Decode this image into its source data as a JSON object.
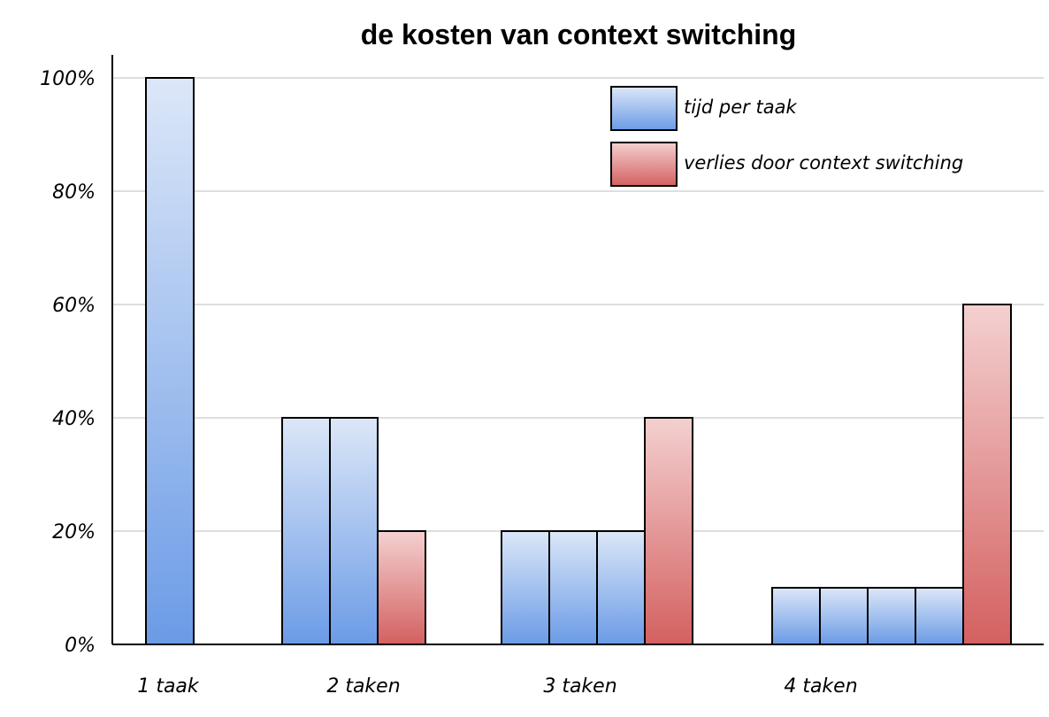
{
  "chart_data": {
    "type": "bar",
    "title": "de kosten van context switching",
    "xlabel": "",
    "ylabel": "",
    "ylim": [
      0,
      100
    ],
    "yticks": [
      "0%",
      "20%",
      "40%",
      "60%",
      "80%",
      "100%"
    ],
    "ytick_values": [
      0,
      20,
      40,
      60,
      80,
      100
    ],
    "grid": true,
    "legend_position": "top-right",
    "series": [
      {
        "name": "tijd per taak",
        "color_top": "#dce7f8",
        "color_bottom": "#6b9be6"
      },
      {
        "name": "verlies door context switching",
        "color_top": "#f4d0d0",
        "color_bottom": "#d46060"
      }
    ],
    "groups": [
      {
        "label": "1 taak",
        "bars": [
          {
            "series": 0,
            "value": 100
          }
        ]
      },
      {
        "label": "2 taken",
        "bars": [
          {
            "series": 0,
            "value": 40
          },
          {
            "series": 0,
            "value": 40
          },
          {
            "series": 1,
            "value": 20
          }
        ]
      },
      {
        "label": "3 taken",
        "bars": [
          {
            "series": 0,
            "value": 20
          },
          {
            "series": 0,
            "value": 20
          },
          {
            "series": 0,
            "value": 20
          },
          {
            "series": 1,
            "value": 40
          }
        ]
      },
      {
        "label": "4 taken",
        "bars": [
          {
            "series": 0,
            "value": 10
          },
          {
            "series": 0,
            "value": 10
          },
          {
            "series": 0,
            "value": 10
          },
          {
            "series": 0,
            "value": 10
          },
          {
            "series": 1,
            "value": 60
          }
        ]
      }
    ]
  }
}
